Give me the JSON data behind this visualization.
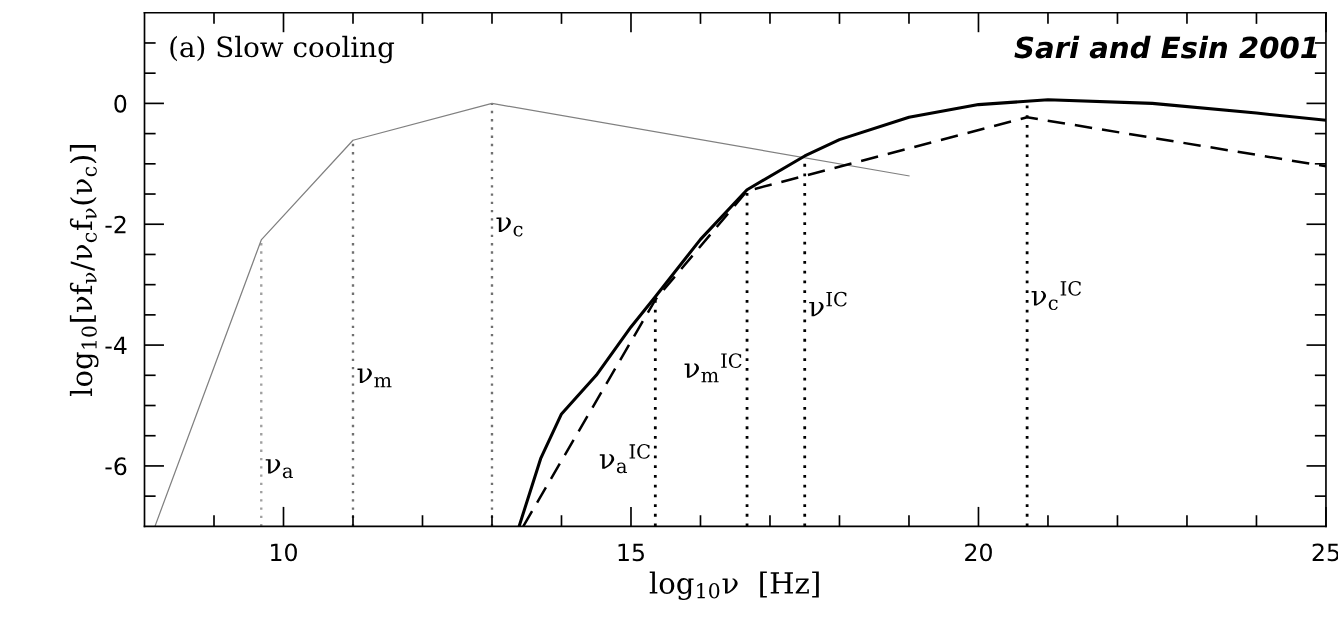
{
  "chart_data": {
    "type": "line",
    "xlabel": "log$_{10}$ν  [Hz]",
    "ylabel": "log$_{10}$[νf$_{ν}$/ν$_{c}$f$_{ν}$(ν$_{c}$)]",
    "xlim": [
      8,
      25
    ],
    "ylim": [
      -7,
      1.5
    ],
    "xticks": [
      {
        "value": 9,
        "label": null
      },
      10,
      {
        "value": 11,
        "label": null
      },
      {
        "value": 12,
        "label": null
      },
      {
        "value": 13,
        "label": null
      },
      {
        "value": 14,
        "label": null
      },
      15,
      {
        "value": 16,
        "label": null
      },
      {
        "value": 17,
        "label": null
      },
      {
        "value": 18,
        "label": null
      },
      {
        "value": 19,
        "label": null
      },
      20,
      {
        "value": 21,
        "label": null
      },
      {
        "value": 22,
        "label": null
      },
      {
        "value": 23,
        "label": null
      },
      {
        "value": 24,
        "label": null
      },
      25
    ],
    "yticks": [
      {
        "value": -6.5,
        "label": null
      },
      -6,
      {
        "value": -5.5,
        "label": null
      },
      {
        "value": -5,
        "label": null
      },
      {
        "value": -4.5,
        "label": null
      },
      -4,
      {
        "value": -3.5,
        "label": null
      },
      {
        "value": -3,
        "label": null
      },
      {
        "value": -2.5,
        "label": null
      },
      -2,
      {
        "value": -1.5,
        "label": null
      },
      {
        "value": -1,
        "label": null
      },
      {
        "value": -0.5,
        "label": null
      },
      0,
      {
        "value": 0.5,
        "label": null
      },
      {
        "value": 1,
        "label": null
      }
    ],
    "grid": false,
    "marker": "none",
    "series": [
      {
        "color": "#808080",
        "line_style": "solid",
        "x": [
          8.15,
          9.68,
          11.0,
          13.0,
          19.0
        ],
        "values": [
          -7,
          -2.26,
          -0.61,
          0,
          -1.2
        ]
      },
      {
        "color": "#000000",
        "line_style": "solid",
        "x": [
          13.39,
          13.7,
          14.0,
          14.5,
          15.0,
          15.35,
          16.0,
          16.67,
          17.5,
          18.0,
          19.0,
          20.0,
          21.0,
          22.5,
          24.0,
          25.0
        ],
        "values": [
          -7,
          -5.88,
          -5.14,
          -4.5,
          -3.7,
          -3.2,
          -2.25,
          -1.43,
          -0.87,
          -0.6,
          -0.23,
          -0.02,
          0.06,
          0.0,
          -0.16,
          -0.28
        ]
      },
      {
        "color": "#000000",
        "line_style": "dashed",
        "x": [
          13.45,
          15.35,
          16.67,
          20.7,
          25.0
        ],
        "values": [
          -7,
          -3.25,
          -1.45,
          -0.23,
          -1.04
        ]
      }
    ],
    "ref_lines": [
      {
        "axis": "x",
        "value": 9.68,
        "color": "#a0a0a0",
        "line_style": "dotted"
      },
      {
        "axis": "x",
        "value": 11.0,
        "color": "#707070",
        "line_style": "dotted"
      },
      {
        "axis": "x",
        "value": 13.0,
        "color": "#707070",
        "line_style": "dotted"
      },
      {
        "axis": "x",
        "value": 15.35,
        "color": "#000000",
        "line_style": "dotted"
      },
      {
        "axis": "x",
        "value": 16.67,
        "color": "#000000",
        "line_style": "dotted"
      },
      {
        "axis": "x",
        "value": 17.5,
        "color": "#000000",
        "line_style": "dotted"
      },
      {
        "axis": "x",
        "value": 20.7,
        "color": "#000000",
        "line_style": "dotted"
      }
    ],
    "annotations": [
      "(a) Slow cooling",
      "Sari and Esin 2001",
      {
        "text": "ν$_{a}$",
        "x": 9.68,
        "y": -6.0
      },
      {
        "text": "ν$_{m}$",
        "x": 11.0,
        "y": -4.5
      },
      {
        "text": "ν$_{c}$",
        "x": 13.0,
        "y": -2.0
      },
      {
        "text": "ν$_{a}$$^{IC}$",
        "x": 15.35,
        "y": -5.9
      },
      {
        "text": "ν$_{m}$$^{IC}$",
        "x": 16.67,
        "y": -4.4
      },
      {
        "text": "ν$^{IC}$",
        "x": 17.5,
        "y": -3.4
      },
      {
        "text": "ν$_{c}$$^{IC}$",
        "x": 20.7,
        "y": -3.2
      }
    ]
  }
}
